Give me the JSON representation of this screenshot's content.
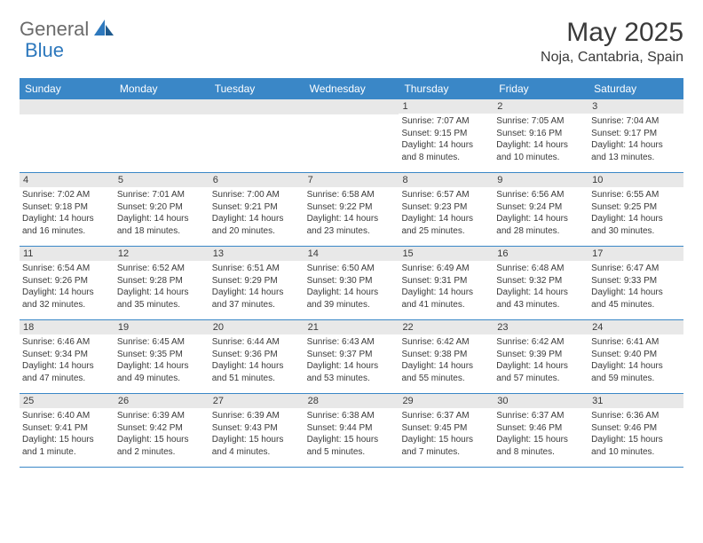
{
  "brand": {
    "part1": "General",
    "part2": "Blue"
  },
  "title": "May 2025",
  "location": "Noja, Cantabria, Spain",
  "colors": {
    "header_bg": "#3a87c7",
    "border": "#3a87c7",
    "daynum_bg": "#e8e8e8",
    "text": "#3a3a3a",
    "logo_gray": "#6b6b6b",
    "logo_blue": "#2d78bd"
  },
  "weekdays": [
    "Sunday",
    "Monday",
    "Tuesday",
    "Wednesday",
    "Thursday",
    "Friday",
    "Saturday"
  ],
  "weeks": [
    [
      {
        "n": "",
        "lines": []
      },
      {
        "n": "",
        "lines": []
      },
      {
        "n": "",
        "lines": []
      },
      {
        "n": "",
        "lines": []
      },
      {
        "n": "1",
        "lines": [
          "Sunrise: 7:07 AM",
          "Sunset: 9:15 PM",
          "Daylight: 14 hours",
          "and 8 minutes."
        ]
      },
      {
        "n": "2",
        "lines": [
          "Sunrise: 7:05 AM",
          "Sunset: 9:16 PM",
          "Daylight: 14 hours",
          "and 10 minutes."
        ]
      },
      {
        "n": "3",
        "lines": [
          "Sunrise: 7:04 AM",
          "Sunset: 9:17 PM",
          "Daylight: 14 hours",
          "and 13 minutes."
        ]
      }
    ],
    [
      {
        "n": "4",
        "lines": [
          "Sunrise: 7:02 AM",
          "Sunset: 9:18 PM",
          "Daylight: 14 hours",
          "and 16 minutes."
        ]
      },
      {
        "n": "5",
        "lines": [
          "Sunrise: 7:01 AM",
          "Sunset: 9:20 PM",
          "Daylight: 14 hours",
          "and 18 minutes."
        ]
      },
      {
        "n": "6",
        "lines": [
          "Sunrise: 7:00 AM",
          "Sunset: 9:21 PM",
          "Daylight: 14 hours",
          "and 20 minutes."
        ]
      },
      {
        "n": "7",
        "lines": [
          "Sunrise: 6:58 AM",
          "Sunset: 9:22 PM",
          "Daylight: 14 hours",
          "and 23 minutes."
        ]
      },
      {
        "n": "8",
        "lines": [
          "Sunrise: 6:57 AM",
          "Sunset: 9:23 PM",
          "Daylight: 14 hours",
          "and 25 minutes."
        ]
      },
      {
        "n": "9",
        "lines": [
          "Sunrise: 6:56 AM",
          "Sunset: 9:24 PM",
          "Daylight: 14 hours",
          "and 28 minutes."
        ]
      },
      {
        "n": "10",
        "lines": [
          "Sunrise: 6:55 AM",
          "Sunset: 9:25 PM",
          "Daylight: 14 hours",
          "and 30 minutes."
        ]
      }
    ],
    [
      {
        "n": "11",
        "lines": [
          "Sunrise: 6:54 AM",
          "Sunset: 9:26 PM",
          "Daylight: 14 hours",
          "and 32 minutes."
        ]
      },
      {
        "n": "12",
        "lines": [
          "Sunrise: 6:52 AM",
          "Sunset: 9:28 PM",
          "Daylight: 14 hours",
          "and 35 minutes."
        ]
      },
      {
        "n": "13",
        "lines": [
          "Sunrise: 6:51 AM",
          "Sunset: 9:29 PM",
          "Daylight: 14 hours",
          "and 37 minutes."
        ]
      },
      {
        "n": "14",
        "lines": [
          "Sunrise: 6:50 AM",
          "Sunset: 9:30 PM",
          "Daylight: 14 hours",
          "and 39 minutes."
        ]
      },
      {
        "n": "15",
        "lines": [
          "Sunrise: 6:49 AM",
          "Sunset: 9:31 PM",
          "Daylight: 14 hours",
          "and 41 minutes."
        ]
      },
      {
        "n": "16",
        "lines": [
          "Sunrise: 6:48 AM",
          "Sunset: 9:32 PM",
          "Daylight: 14 hours",
          "and 43 minutes."
        ]
      },
      {
        "n": "17",
        "lines": [
          "Sunrise: 6:47 AM",
          "Sunset: 9:33 PM",
          "Daylight: 14 hours",
          "and 45 minutes."
        ]
      }
    ],
    [
      {
        "n": "18",
        "lines": [
          "Sunrise: 6:46 AM",
          "Sunset: 9:34 PM",
          "Daylight: 14 hours",
          "and 47 minutes."
        ]
      },
      {
        "n": "19",
        "lines": [
          "Sunrise: 6:45 AM",
          "Sunset: 9:35 PM",
          "Daylight: 14 hours",
          "and 49 minutes."
        ]
      },
      {
        "n": "20",
        "lines": [
          "Sunrise: 6:44 AM",
          "Sunset: 9:36 PM",
          "Daylight: 14 hours",
          "and 51 minutes."
        ]
      },
      {
        "n": "21",
        "lines": [
          "Sunrise: 6:43 AM",
          "Sunset: 9:37 PM",
          "Daylight: 14 hours",
          "and 53 minutes."
        ]
      },
      {
        "n": "22",
        "lines": [
          "Sunrise: 6:42 AM",
          "Sunset: 9:38 PM",
          "Daylight: 14 hours",
          "and 55 minutes."
        ]
      },
      {
        "n": "23",
        "lines": [
          "Sunrise: 6:42 AM",
          "Sunset: 9:39 PM",
          "Daylight: 14 hours",
          "and 57 minutes."
        ]
      },
      {
        "n": "24",
        "lines": [
          "Sunrise: 6:41 AM",
          "Sunset: 9:40 PM",
          "Daylight: 14 hours",
          "and 59 minutes."
        ]
      }
    ],
    [
      {
        "n": "25",
        "lines": [
          "Sunrise: 6:40 AM",
          "Sunset: 9:41 PM",
          "Daylight: 15 hours",
          "and 1 minute."
        ]
      },
      {
        "n": "26",
        "lines": [
          "Sunrise: 6:39 AM",
          "Sunset: 9:42 PM",
          "Daylight: 15 hours",
          "and 2 minutes."
        ]
      },
      {
        "n": "27",
        "lines": [
          "Sunrise: 6:39 AM",
          "Sunset: 9:43 PM",
          "Daylight: 15 hours",
          "and 4 minutes."
        ]
      },
      {
        "n": "28",
        "lines": [
          "Sunrise: 6:38 AM",
          "Sunset: 9:44 PM",
          "Daylight: 15 hours",
          "and 5 minutes."
        ]
      },
      {
        "n": "29",
        "lines": [
          "Sunrise: 6:37 AM",
          "Sunset: 9:45 PM",
          "Daylight: 15 hours",
          "and 7 minutes."
        ]
      },
      {
        "n": "30",
        "lines": [
          "Sunrise: 6:37 AM",
          "Sunset: 9:46 PM",
          "Daylight: 15 hours",
          "and 8 minutes."
        ]
      },
      {
        "n": "31",
        "lines": [
          "Sunrise: 6:36 AM",
          "Sunset: 9:46 PM",
          "Daylight: 15 hours",
          "and 10 minutes."
        ]
      }
    ]
  ]
}
